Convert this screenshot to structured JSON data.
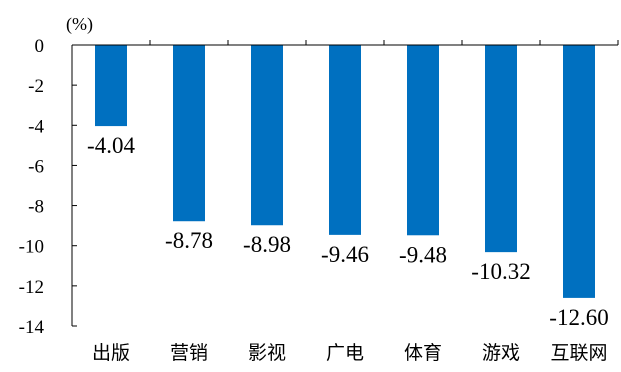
{
  "chart_data": {
    "type": "bar",
    "unit": "(%)",
    "categories": [
      "出版",
      "营销",
      "影视",
      "广电",
      "体育",
      "游戏",
      "互联网"
    ],
    "values": [
      -4.04,
      -8.78,
      -8.98,
      -9.46,
      -9.48,
      -10.32,
      -12.6
    ],
    "value_labels": [
      "-4.04",
      "-8.78",
      "-8.98",
      "-9.46",
      "-9.48",
      "-10.32",
      "-12.60"
    ],
    "y_ticks": [
      "0",
      "-2",
      "-4",
      "-6",
      "-8",
      "-10",
      "-12",
      "-14"
    ],
    "ylim": [
      -14,
      0
    ],
    "grid": false,
    "bar_color": "#0070C0",
    "axis_color": "#000000"
  }
}
